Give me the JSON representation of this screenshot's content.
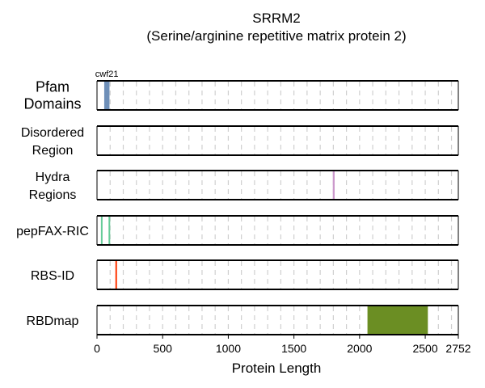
{
  "title": {
    "line1": "SRRM2",
    "line2": "(Serine/arginine repetitive matrix protein 2)"
  },
  "chart_data": {
    "type": "diagram",
    "protein_length": 2752,
    "xlabel": "Protein Length",
    "xlim": [
      0,
      2752
    ],
    "xticks": [
      0,
      500,
      1000,
      1500,
      2000,
      2500,
      2752
    ],
    "grid_dashes": [
      100,
      200,
      300,
      400,
      500,
      600,
      700,
      800,
      900,
      1000,
      1100,
      1200,
      1300,
      1400,
      1500,
      1600,
      1700,
      1800,
      1900,
      2000,
      2100,
      2200,
      2300,
      2400,
      2500,
      2600,
      2700
    ],
    "tracks": [
      {
        "label_lines": [
          "Pfam",
          "Domains"
        ],
        "features": [
          {
            "start": 55,
            "end": 95,
            "color": "#6e8fb8",
            "label": "cwf21"
          }
        ]
      },
      {
        "label_lines": [
          "Disordered",
          "Region"
        ],
        "features": []
      },
      {
        "label_lines": [
          "Hydra",
          "Regions"
        ],
        "features": [
          {
            "start": 1796,
            "end": 1810,
            "color": "#cc99cc"
          }
        ]
      },
      {
        "label_lines": [
          "pepFAX-RIC"
        ],
        "features": [
          {
            "start": 30,
            "end": 36,
            "color": "#66cc99"
          },
          {
            "start": 88,
            "end": 94,
            "color": "#66cc99"
          }
        ]
      },
      {
        "label_lines": [
          "RBS-ID"
        ],
        "features": [
          {
            "start": 140,
            "end": 150,
            "color": "#ff3300"
          }
        ]
      },
      {
        "label_lines": [
          "RBDmap"
        ],
        "features": [
          {
            "start": 2060,
            "end": 2520,
            "color": "#6b8e23"
          }
        ]
      }
    ]
  }
}
